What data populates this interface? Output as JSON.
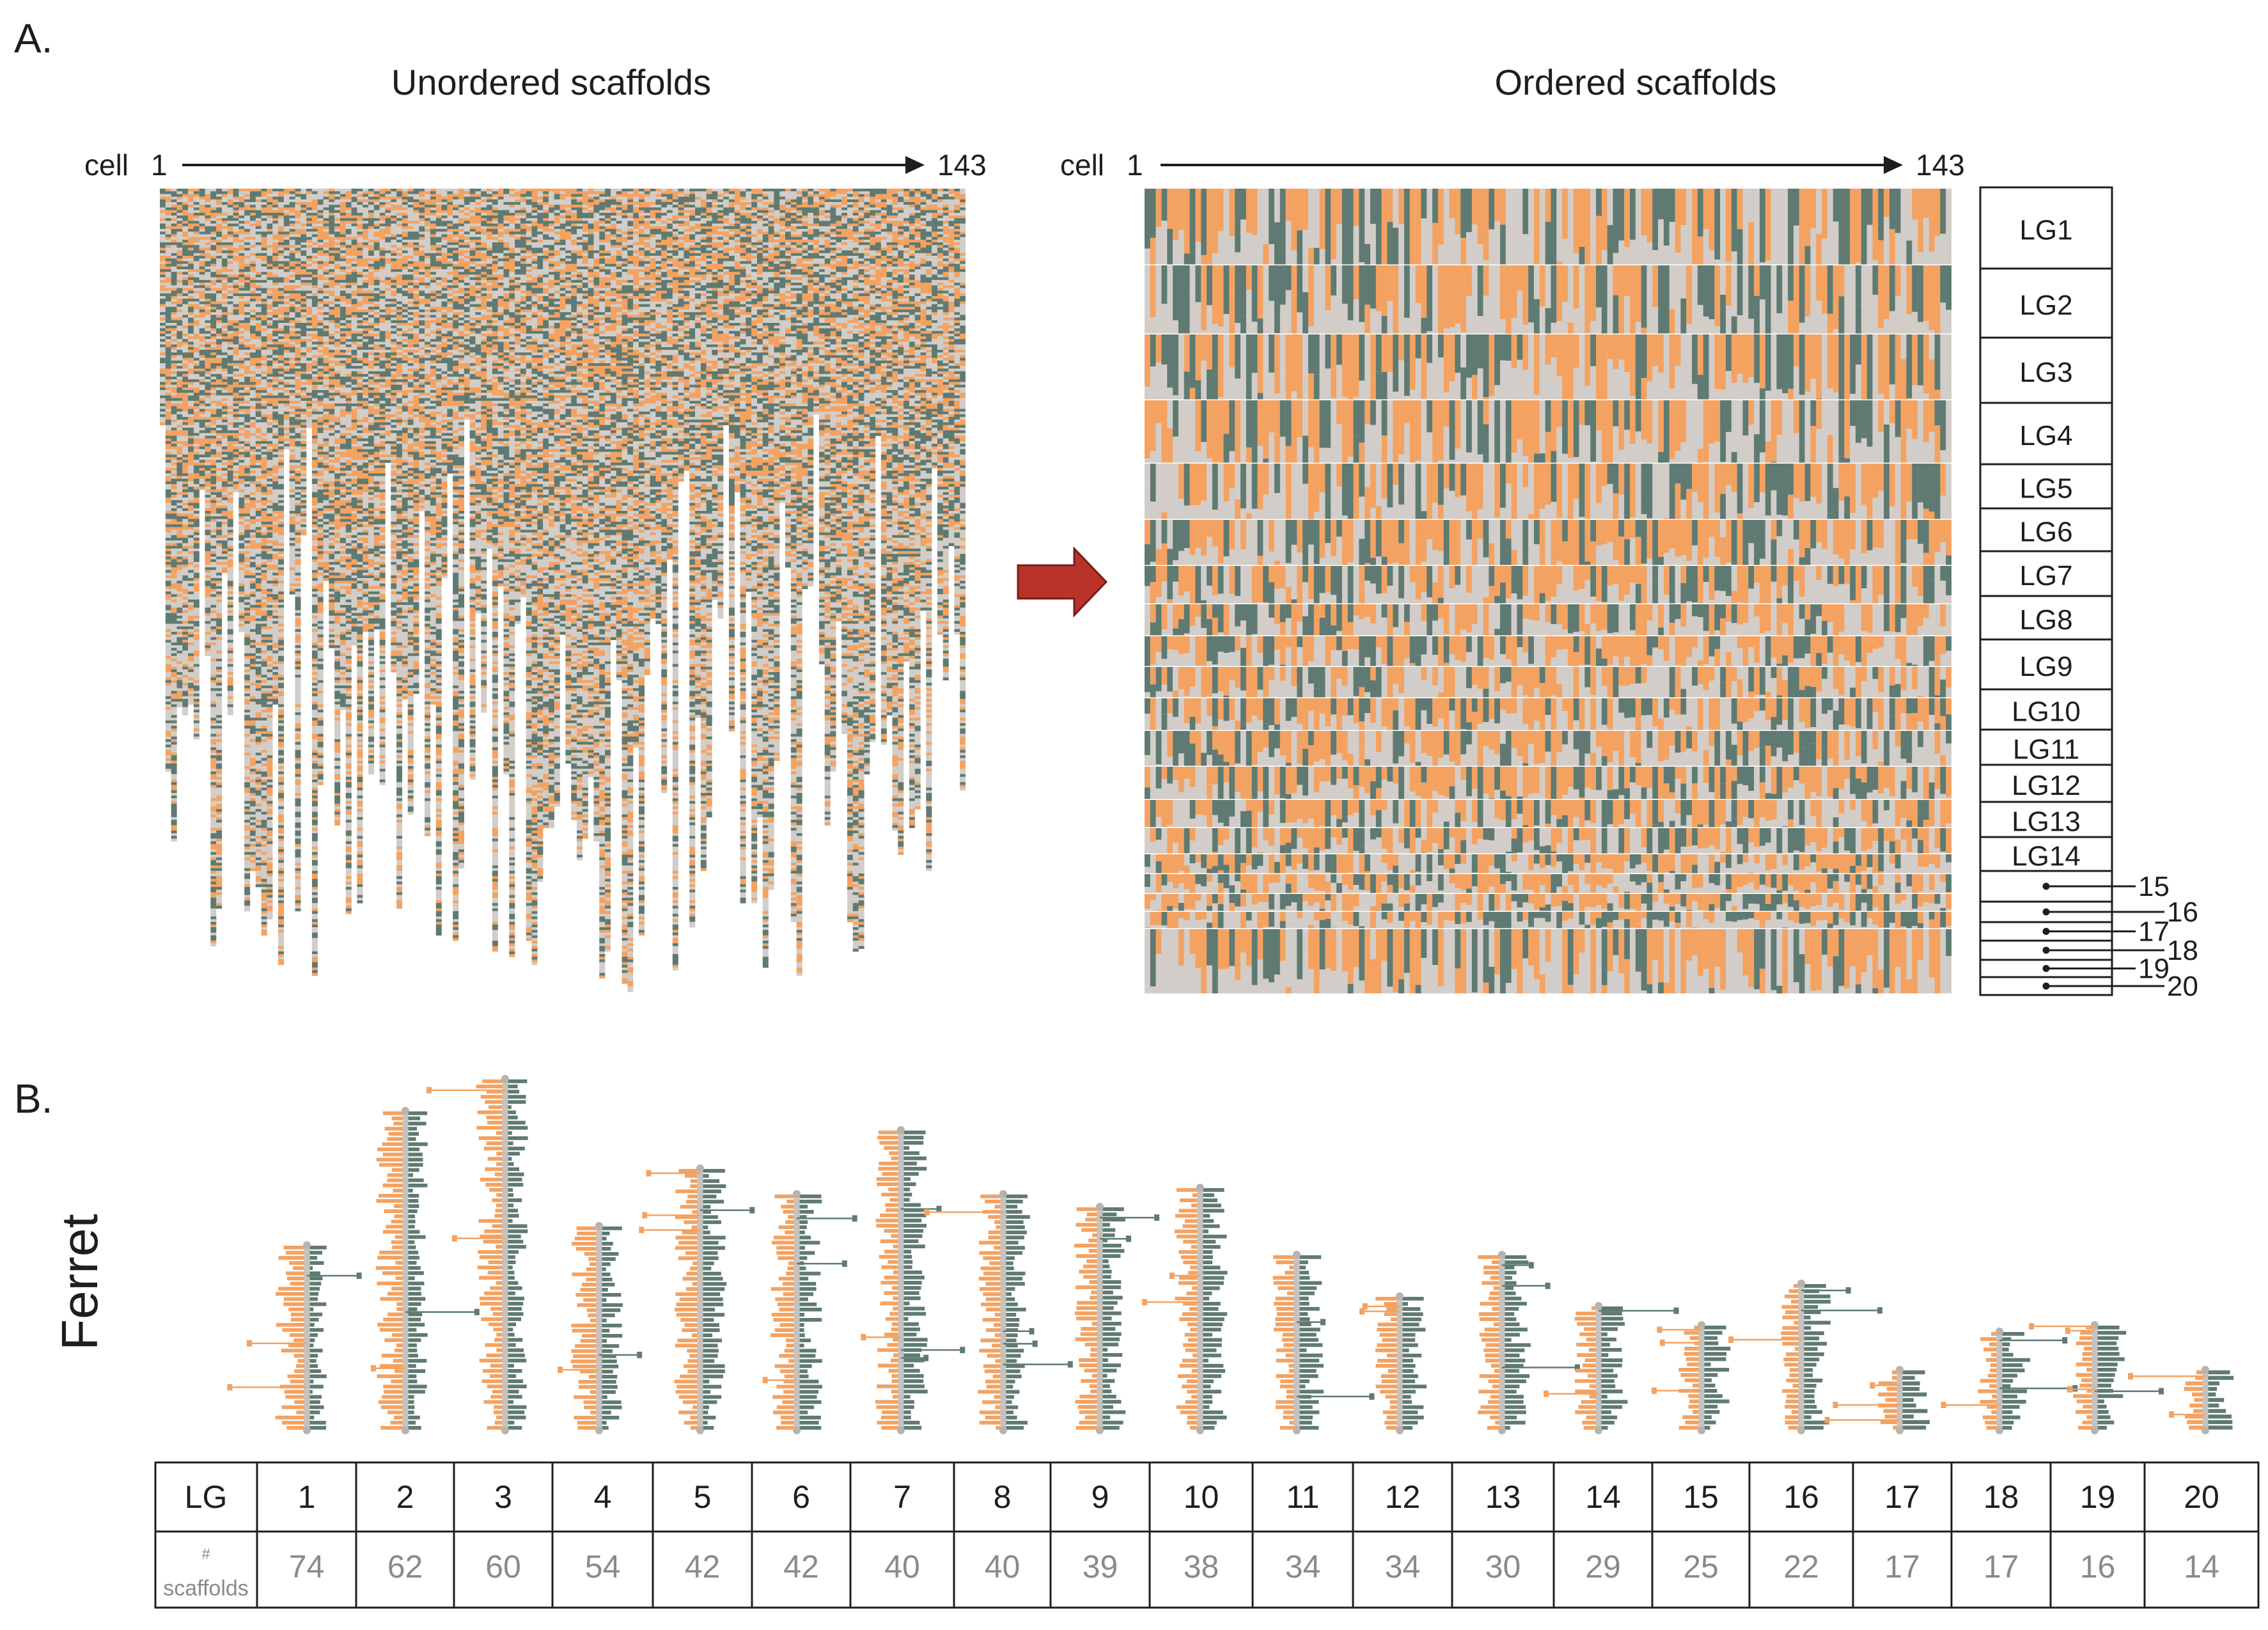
{
  "colors": {
    "orange": "#f4a261",
    "green": "#5f7a72",
    "grey": "#d2cdc8",
    "white": "#ffffff",
    "arrow": "#b9332b",
    "text": "#1e1e1e",
    "muted": "#8a8a8a"
  },
  "panel_a": {
    "label": "A.",
    "unordered": {
      "title": "Unordered scaffolds",
      "cell_label": "cell",
      "cell_start": "1",
      "cell_end": "143"
    },
    "ordered": {
      "title": "Ordered scaffolds",
      "cell_label": "cell",
      "cell_start": "1",
      "cell_end": "143"
    },
    "lg_labels": [
      "LG1",
      "LG2",
      "LG3",
      "LG4",
      "LG5",
      "LG6",
      "LG7",
      "LG8",
      "LG9",
      "LG10",
      "LG11",
      "LG12",
      "LG13",
      "LG14"
    ],
    "small_lg_labels": [
      "15",
      "16",
      "17",
      "18",
      "19",
      "20"
    ]
  },
  "panel_b": {
    "label": "B.",
    "species": "Ferret",
    "table": {
      "row1_header": "LG",
      "row2_header_line1": "#",
      "row2_header_line2": "scaffolds",
      "lgs": [
        "1",
        "2",
        "3",
        "4",
        "5",
        "6",
        "7",
        "8",
        "9",
        "10",
        "11",
        "12",
        "13",
        "14",
        "15",
        "16",
        "17",
        "18",
        "19",
        "20"
      ],
      "scaffold_counts": [
        "74",
        "62",
        "60",
        "54",
        "42",
        "42",
        "40",
        "40",
        "39",
        "38",
        "34",
        "34",
        "30",
        "29",
        "25",
        "22",
        "17",
        "17",
        "16",
        "14"
      ]
    }
  },
  "chart_data": {
    "type": "bar",
    "title": "Ferret",
    "xlabel": "LG",
    "ylabel": "# scaffolds",
    "categories": [
      "1",
      "2",
      "3",
      "4",
      "5",
      "6",
      "7",
      "8",
      "9",
      "10",
      "11",
      "12",
      "13",
      "14",
      "15",
      "16",
      "17",
      "18",
      "19",
      "20"
    ],
    "values": [
      74,
      62,
      60,
      54,
      42,
      42,
      40,
      40,
      39,
      38,
      34,
      34,
      30,
      29,
      25,
      22,
      17,
      17,
      16,
      14
    ]
  }
}
